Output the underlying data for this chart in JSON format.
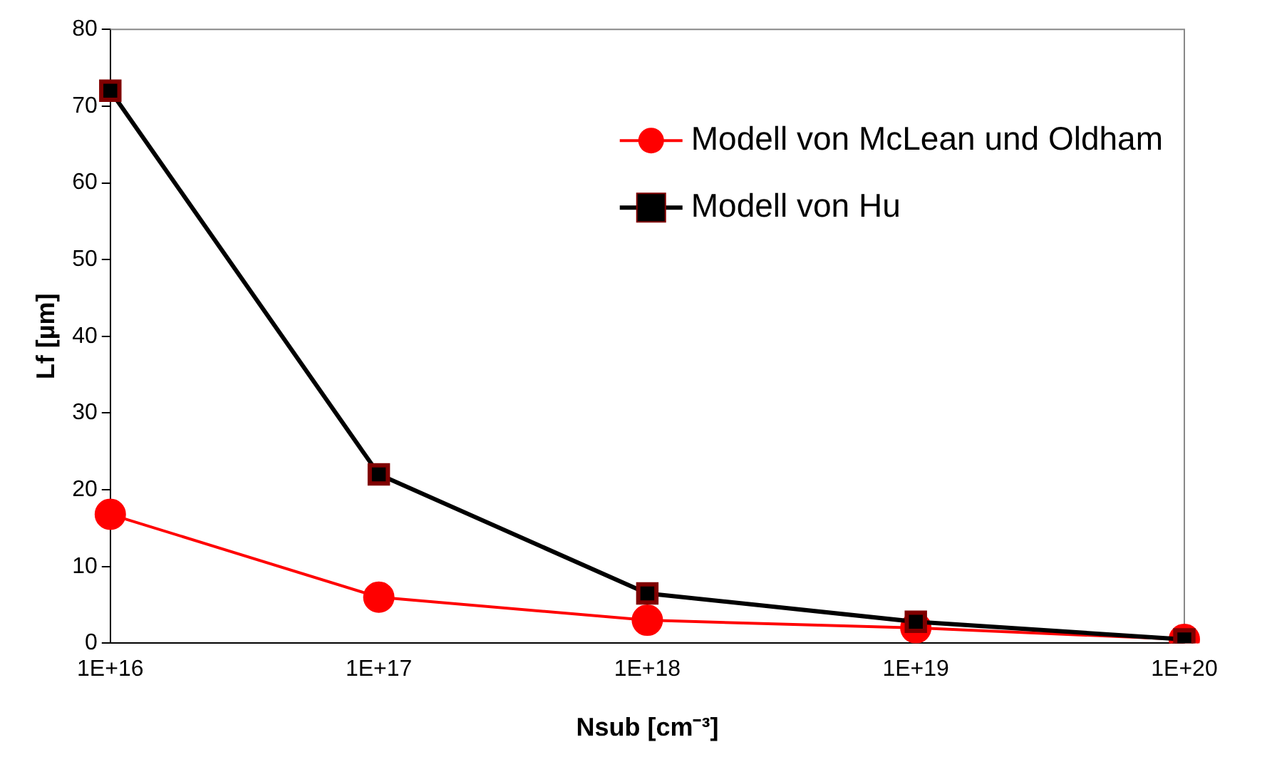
{
  "chart_data": {
    "type": "line",
    "xlabel": "Nsub [cm⁻³]",
    "ylabel": "Lf [µm]",
    "categories": [
      "1E+16",
      "1E+17",
      "1E+18",
      "1E+19",
      "1E+20"
    ],
    "series": [
      {
        "name": "Modell von McLean und Oldham",
        "color": "#ff0000",
        "values": [
          16.8,
          6,
          3,
          2,
          0.5
        ],
        "marker": "circle",
        "line_style": "solid"
      },
      {
        "name": "Modell von Hu",
        "color": "#000000",
        "values": [
          72,
          22,
          6.5,
          2.8,
          0.5
        ],
        "marker": "square",
        "line_style": "solid"
      }
    ],
    "ylim": [
      0,
      80
    ],
    "yticks": [
      0,
      10,
      20,
      30,
      40,
      50,
      60,
      70,
      80
    ],
    "grid": false,
    "legend": "top right"
  }
}
